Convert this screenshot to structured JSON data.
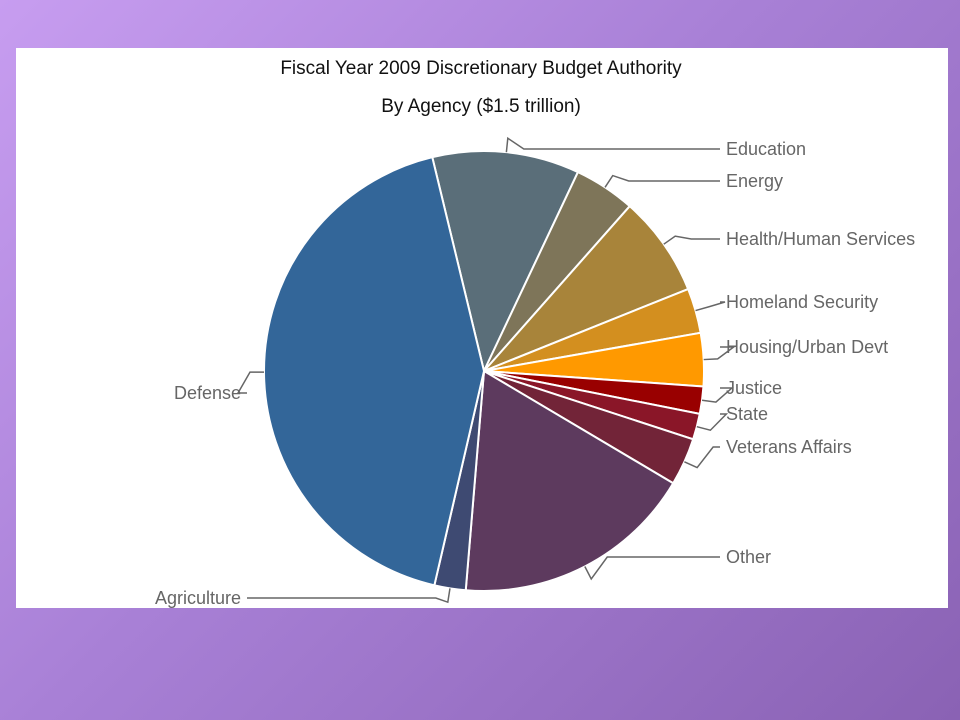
{
  "chart_data": {
    "type": "pie",
    "title": "Fiscal Year 2009 Discretionary Budget Authority",
    "subtitle": "By Agency ($1.5 trillion)",
    "slices": [
      {
        "label": "Education",
        "value": 10.8,
        "color": "#5a6e79"
      },
      {
        "label": "Energy",
        "value": 4.5,
        "color": "#7e7559"
      },
      {
        "label": "Health/Human Services",
        "value": 7.4,
        "color": "#a8843a"
      },
      {
        "label": "Homeland Security",
        "value": 3.3,
        "color": "#d38f1f"
      },
      {
        "label": "Housing/Urban Devt",
        "value": 3.9,
        "color": "#ff9900"
      },
      {
        "label": "Justice",
        "value": 2.0,
        "color": "#990000"
      },
      {
        "label": "State",
        "value": 1.9,
        "color": "#8a1628"
      },
      {
        "label": "Veterans Affairs",
        "value": 3.5,
        "color": "#722438"
      },
      {
        "label": "Other",
        "value": 17.8,
        "color": "#5d3a5e"
      },
      {
        "label": "Agriculture",
        "value": 2.3,
        "color": "#3e4a72"
      },
      {
        "label": "Defense",
        "value": 42.6,
        "color": "#336699"
      }
    ]
  }
}
